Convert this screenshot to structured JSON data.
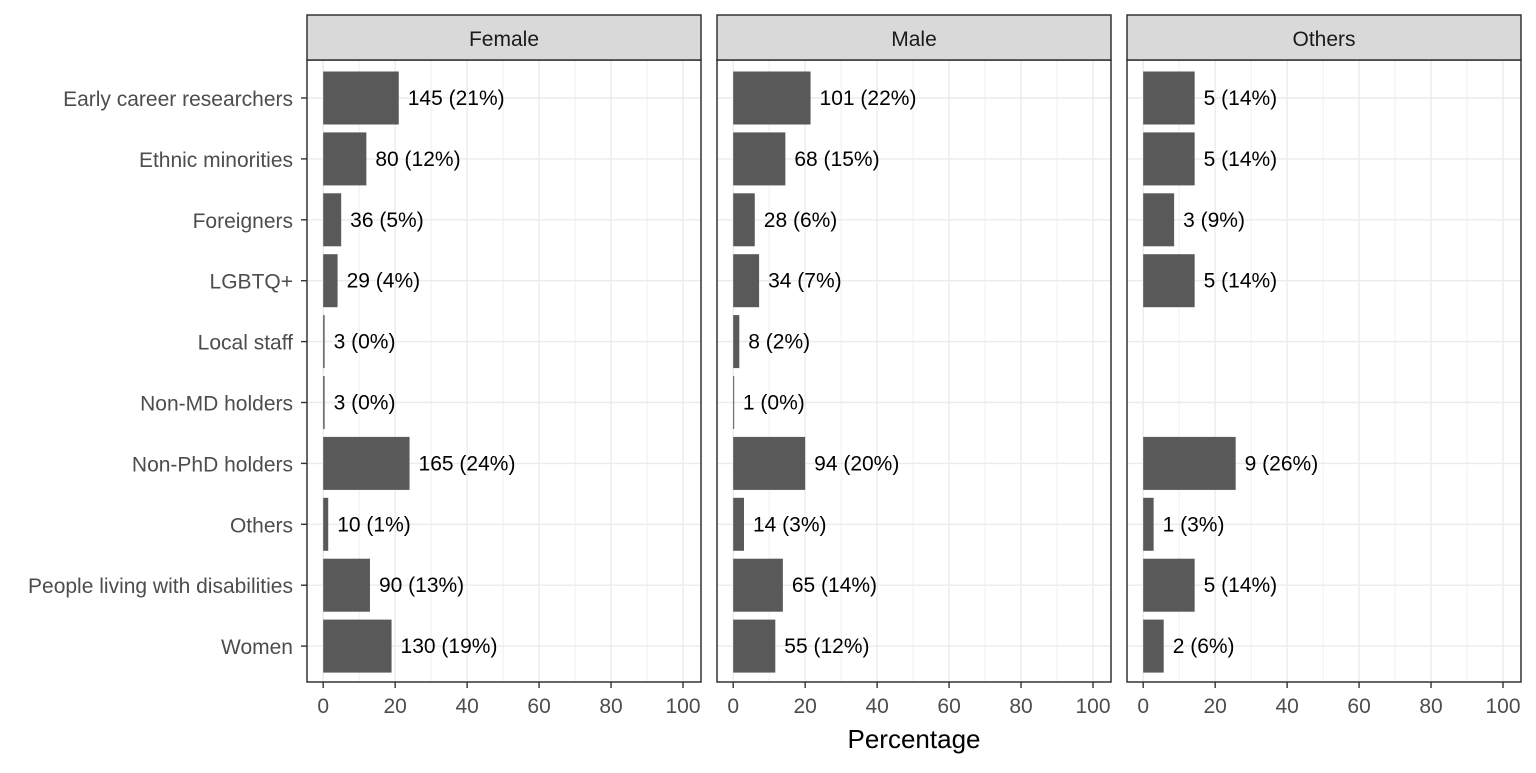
{
  "chart_data": {
    "type": "bar",
    "orientation": "horizontal",
    "facets": [
      "Female",
      "Male",
      "Others"
    ],
    "categories": [
      "Early career researchers",
      "Ethnic minorities",
      "Foreigners",
      "LGBTQ+",
      "Local staff",
      "Non-MD holders",
      "Non-PhD holders",
      "Others",
      "People living with disabilities",
      "Women"
    ],
    "series": [
      {
        "facet": "Female",
        "values": [
          21,
          12,
          5,
          4,
          0.4,
          0.4,
          24,
          1.4,
          13,
          19
        ],
        "labels": [
          "145 (21%)",
          "80 (12%)",
          "36 (5%)",
          "29 (4%)",
          "3 (0%)",
          "3 (0%)",
          "165 (24%)",
          "10 (1%)",
          "90 (13%)",
          "130 (19%)"
        ]
      },
      {
        "facet": "Male",
        "values": [
          21.5,
          14.5,
          6,
          7.2,
          1.7,
          0.2,
          20,
          3,
          13.8,
          11.7
        ],
        "labels": [
          "101 (22%)",
          "68 (15%)",
          "28 (6%)",
          "34 (7%)",
          "8 (2%)",
          "1 (0%)",
          "94 (20%)",
          "14 (3%)",
          "65 (14%)",
          "55 (12%)"
        ]
      },
      {
        "facet": "Others",
        "values": [
          14.3,
          14.3,
          8.6,
          14.3,
          null,
          null,
          25.7,
          2.9,
          14.3,
          5.7
        ],
        "labels": [
          "5 (14%)",
          "5 (14%)",
          "3 (9%)",
          "5 (14%)",
          "",
          "",
          "9 (26%)",
          "1 (3%)",
          "5 (14%)",
          "2 (6%)"
        ]
      }
    ],
    "xlabel": "Percentage",
    "ylabel": "",
    "xlim": [
      -4.5,
      105
    ],
    "xticks": [
      0,
      20,
      40,
      60,
      80,
      100
    ],
    "grid": true,
    "bar_color": "#595959"
  }
}
